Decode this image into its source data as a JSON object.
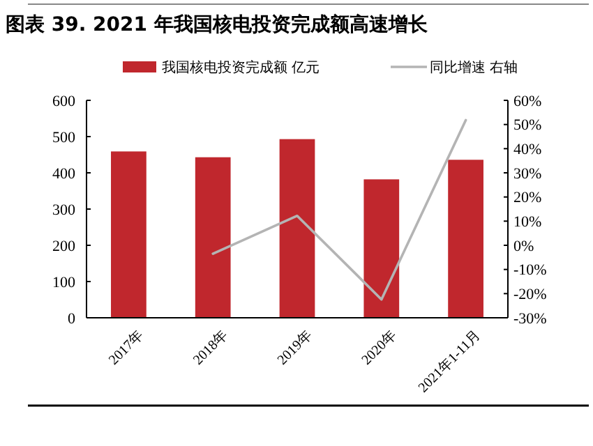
{
  "chart_data": {
    "type": "bar",
    "title": "图表 39. 2021 年我国核电投资完成额高速增长",
    "categories": [
      "2017年",
      "2018年",
      "2019年",
      "2020年",
      "2021年1-11月"
    ],
    "series": [
      {
        "name": "我国核电投资完成额 亿元",
        "color": "#c0272d",
        "values": [
          459,
          443,
          493,
          382,
          436
        ]
      },
      {
        "name": "同比增速 右轴",
        "type": "line",
        "axis": "y2",
        "color": "#b4b4b4",
        "values": [
          null,
          -3.5,
          12.2,
          -22.4,
          51.8
        ]
      }
    ],
    "ylim": [
      0,
      600
    ],
    "yticks": [
      0,
      100,
      200,
      300,
      400,
      500,
      600
    ],
    "y2lim": [
      -30,
      60
    ],
    "y2ticks": [
      {
        "value": -30,
        "label": "-30%"
      },
      {
        "value": -20,
        "label": "-20%"
      },
      {
        "value": -10,
        "label": "-10%"
      },
      {
        "value": 0,
        "label": "0%"
      },
      {
        "value": 10,
        "label": "10%"
      },
      {
        "value": 20,
        "label": "20%"
      },
      {
        "value": 30,
        "label": "30%"
      },
      {
        "value": 40,
        "label": "40%"
      },
      {
        "value": 50,
        "label": "50%"
      },
      {
        "value": 60,
        "label": "60%"
      }
    ],
    "legend": "top",
    "grid": false
  }
}
